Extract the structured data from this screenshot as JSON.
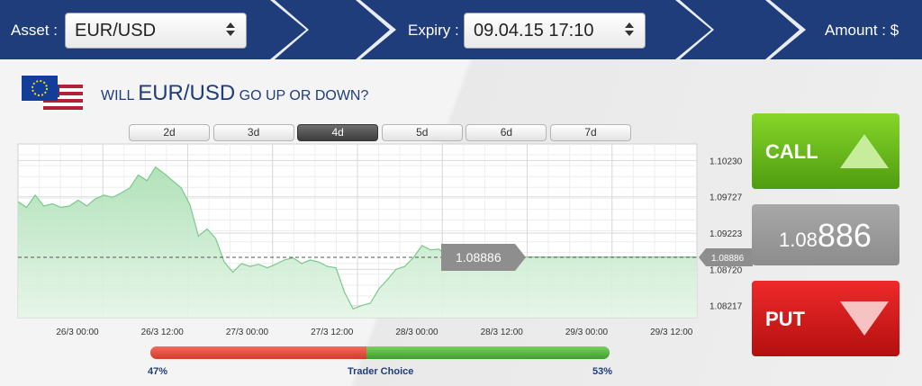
{
  "topbar": {
    "asset_label": "Asset :",
    "asset_value": "EUR/USD",
    "expiry_label": "Expiry :",
    "expiry_value": "09.04.15 17:10",
    "amount_label": "Amount : $"
  },
  "question": {
    "prefix": "WILL ",
    "asset": "EUR/USD",
    "suffix": " GO UP OR DOWN?"
  },
  "timeframes": [
    {
      "label": "2d",
      "active": false
    },
    {
      "label": "3d",
      "active": false
    },
    {
      "label": "4d",
      "active": true
    },
    {
      "label": "5d",
      "active": false
    },
    {
      "label": "6d",
      "active": false
    },
    {
      "label": "7d",
      "active": false
    }
  ],
  "chart_data": {
    "type": "area",
    "x_labels": [
      "26/3 00:00",
      "26/3 12:00",
      "27/3 00:00",
      "27/3 12:00",
      "28/3 00:00",
      "28/3 12:00",
      "29/3 00:00",
      "29/3 12:00"
    ],
    "y_ticks": [
      "1.10230",
      "1.09727",
      "1.09223",
      "1.08720",
      "1.08217"
    ],
    "ylim": [
      1.0805,
      1.1046
    ],
    "current_price_label": "1.08886",
    "current_price_value": 1.08886,
    "series": [
      {
        "values": [
          1.0966,
          1.0958,
          1.0975,
          1.096,
          1.0963,
          1.0958,
          1.096,
          1.0968,
          1.096,
          1.097,
          1.0975,
          1.0972,
          1.0978,
          1.0985,
          1.1003,
          1.0995,
          1.1014,
          1.1005,
          1.0995,
          1.0985,
          1.0962,
          1.0918,
          1.0928,
          1.0915,
          1.0882,
          1.0868,
          1.088,
          1.0876,
          1.0879,
          1.0874,
          1.0879,
          1.0885,
          1.0888,
          1.088,
          1.0885,
          1.0882,
          1.0876,
          1.0874,
          1.084,
          1.0817,
          1.0822,
          1.0825,
          1.0845,
          1.0858,
          1.0872,
          1.0876,
          1.0888,
          1.0905,
          1.0899,
          1.09,
          1.0889,
          1.0889,
          1.0889,
          1.0889,
          1.0889,
          1.0889,
          1.0889,
          1.0889,
          1.0889,
          1.0889,
          1.0889,
          1.0889,
          1.0889,
          1.0889,
          1.0889,
          1.0889,
          1.0889,
          1.0889,
          1.0889,
          1.0889,
          1.0889,
          1.0889,
          1.0889,
          1.0889,
          1.0889,
          1.0889,
          1.0889,
          1.0889,
          1.0889,
          1.0889
        ]
      }
    ],
    "grid": true
  },
  "trader_choice": {
    "left_label": "47%",
    "left_value": 47,
    "center_label": "Trader Choice",
    "right_label": "53%",
    "right_value": 53
  },
  "call_label": "CALL",
  "put_label": "PUT",
  "price_display": {
    "prefix": "1.08",
    "suffix": "886"
  },
  "colors": {
    "header": "#1f3d7a",
    "call": "#6bbf1e",
    "put": "#d91c1c",
    "area_fill": "#bfe6c6",
    "area_line": "#7ac98a"
  }
}
